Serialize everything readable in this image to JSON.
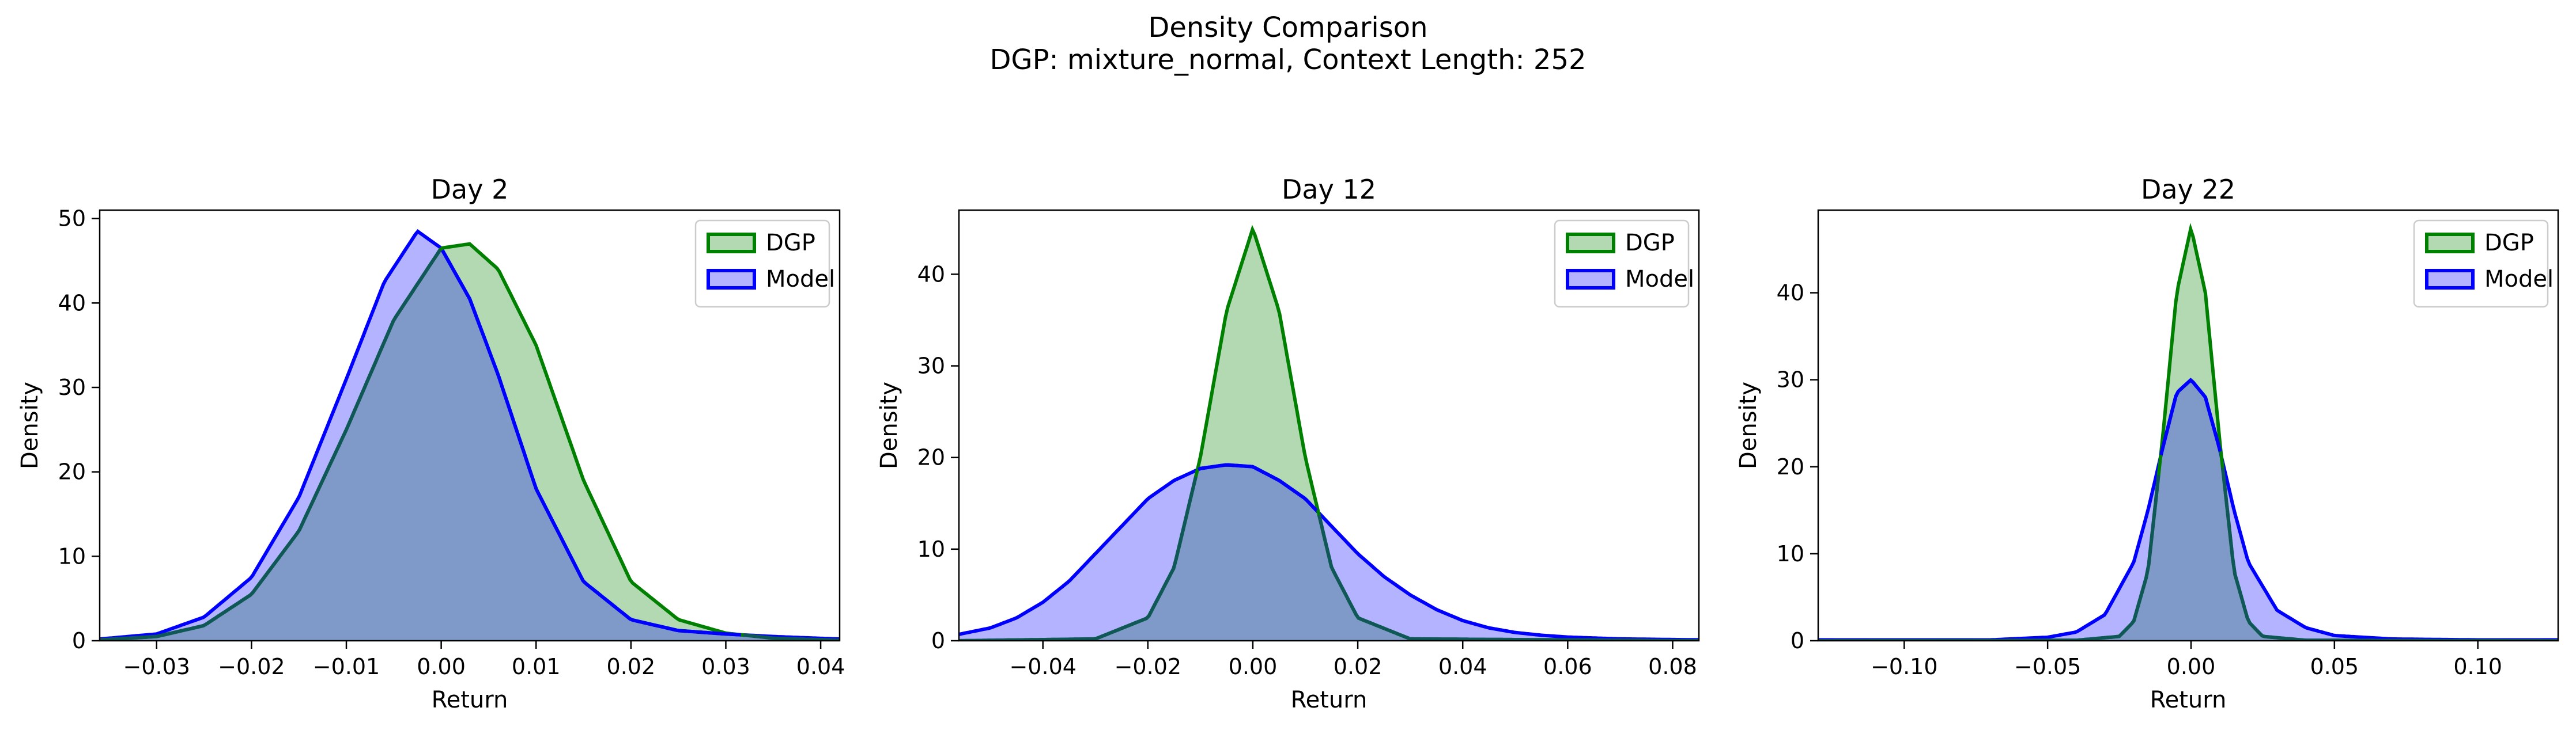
{
  "figure": {
    "title_line1": "Density Comparison",
    "title_line2": "DGP: mixture_normal, Context Length: 252"
  },
  "colors": {
    "dgp_line": "#008000",
    "dgp_fill": "#b3d9b3",
    "model_line": "#0000ff",
    "model_fill": "#b3b3ff",
    "overlap_fill": "#7f99c8"
  },
  "chart_data": [
    {
      "type": "area",
      "title": "Day 2",
      "xlabel": "Return",
      "ylabel": "Density",
      "xlim": [
        -0.036,
        0.042
      ],
      "ylim": [
        0,
        51
      ],
      "xticks": [
        -0.03,
        -0.02,
        -0.01,
        0.0,
        0.01,
        0.02,
        0.03,
        0.04
      ],
      "xtick_labels": [
        "−0.03",
        "−0.02",
        "−0.01",
        "0.00",
        "0.01",
        "0.02",
        "0.03",
        "0.04"
      ],
      "yticks": [
        0,
        10,
        20,
        30,
        40,
        50
      ],
      "ytick_labels": [
        "0",
        "10",
        "20",
        "30",
        "40",
        "50"
      ],
      "legend_position": "top-right",
      "series": [
        {
          "name": "DGP",
          "x": [
            -0.036,
            -0.03,
            -0.025,
            -0.02,
            -0.015,
            -0.01,
            -0.005,
            0.0,
            0.003,
            0.006,
            0.01,
            0.015,
            0.02,
            0.025,
            0.03,
            0.035,
            0.042
          ],
          "y": [
            0.1,
            0.5,
            1.8,
            5.5,
            13,
            25,
            38,
            46.5,
            47,
            44,
            35,
            19,
            7,
            2.5,
            0.9,
            0.3,
            0.05
          ]
        },
        {
          "name": "Model",
          "x": [
            -0.036,
            -0.03,
            -0.025,
            -0.02,
            -0.015,
            -0.01,
            -0.006,
            -0.0025,
            0.0,
            0.003,
            0.006,
            0.01,
            0.015,
            0.02,
            0.025,
            0.03,
            0.035,
            0.042
          ],
          "y": [
            0.2,
            0.8,
            2.8,
            7.5,
            17,
            31,
            42.5,
            48.5,
            46.5,
            40.5,
            31.5,
            18,
            7,
            2.5,
            1.2,
            0.8,
            0.5,
            0.2
          ]
        }
      ]
    },
    {
      "type": "area",
      "title": "Day 12",
      "xlabel": "Return",
      "ylabel": "Density",
      "xlim": [
        -0.056,
        0.085
      ],
      "ylim": [
        0,
        47
      ],
      "xticks": [
        -0.04,
        -0.02,
        0.0,
        0.02,
        0.04,
        0.06,
        0.08
      ],
      "xtick_labels": [
        "−0.04",
        "−0.02",
        "0.00",
        "0.02",
        "0.04",
        "0.06",
        "0.08"
      ],
      "yticks": [
        0,
        10,
        20,
        30,
        40
      ],
      "ytick_labels": [
        "0",
        "10",
        "20",
        "30",
        "40"
      ],
      "legend_position": "top-right",
      "series": [
        {
          "name": "DGP",
          "x": [
            -0.056,
            -0.03,
            -0.02,
            -0.015,
            -0.01,
            -0.005,
            0.0,
            0.005,
            0.01,
            0.015,
            0.02,
            0.03,
            0.085
          ],
          "y": [
            0,
            0.2,
            2.5,
            8,
            20,
            36,
            45,
            36,
            20,
            8,
            2.5,
            0.2,
            0
          ]
        },
        {
          "name": "Model",
          "x": [
            -0.056,
            -0.05,
            -0.045,
            -0.04,
            -0.035,
            -0.03,
            -0.025,
            -0.02,
            -0.015,
            -0.01,
            -0.005,
            0.0,
            0.005,
            0.01,
            0.015,
            0.02,
            0.025,
            0.03,
            0.035,
            0.04,
            0.045,
            0.05,
            0.055,
            0.06,
            0.065,
            0.07,
            0.085
          ],
          "y": [
            0.7,
            1.4,
            2.5,
            4.2,
            6.5,
            9.5,
            12.5,
            15.5,
            17.5,
            18.8,
            19.2,
            19,
            17.5,
            15.5,
            12.5,
            9.5,
            7,
            5,
            3.4,
            2.2,
            1.4,
            0.9,
            0.6,
            0.4,
            0.3,
            0.2,
            0.1
          ]
        }
      ]
    },
    {
      "type": "area",
      "title": "Day 22",
      "xlabel": "Return",
      "ylabel": "Density",
      "xlim": [
        -0.13,
        0.128
      ],
      "ylim": [
        0,
        49.5
      ],
      "xticks": [
        -0.1,
        -0.05,
        0.0,
        0.05,
        0.1
      ],
      "xtick_labels": [
        "−0.10",
        "−0.05",
        "0.00",
        "0.05",
        "0.10"
      ],
      "yticks": [
        0,
        10,
        20,
        30,
        40
      ],
      "ytick_labels": [
        "0",
        "10",
        "20",
        "30",
        "40"
      ],
      "legend_position": "top-right",
      "series": [
        {
          "name": "DGP",
          "x": [
            -0.13,
            -0.04,
            -0.025,
            -0.02,
            -0.015,
            -0.01,
            -0.005,
            0.0,
            0.005,
            0.01,
            0.015,
            0.02,
            0.025,
            0.04,
            0.128
          ],
          "y": [
            0,
            0.05,
            0.5,
            2.2,
            8,
            23,
            40,
            47.5,
            40,
            23,
            8,
            2.2,
            0.5,
            0.05,
            0
          ]
        },
        {
          "name": "Model",
          "x": [
            -0.13,
            -0.1,
            -0.07,
            -0.05,
            -0.04,
            -0.03,
            -0.02,
            -0.015,
            -0.01,
            -0.005,
            0.0,
            0.005,
            0.01,
            0.015,
            0.02,
            0.03,
            0.04,
            0.05,
            0.07,
            0.1,
            0.128
          ],
          "y": [
            0.1,
            0.1,
            0.1,
            0.4,
            1,
            3,
            9,
            15,
            22,
            28.5,
            30,
            28,
            22,
            15,
            9,
            3.5,
            1.5,
            0.6,
            0.2,
            0.1,
            0.1
          ]
        }
      ]
    }
  ]
}
